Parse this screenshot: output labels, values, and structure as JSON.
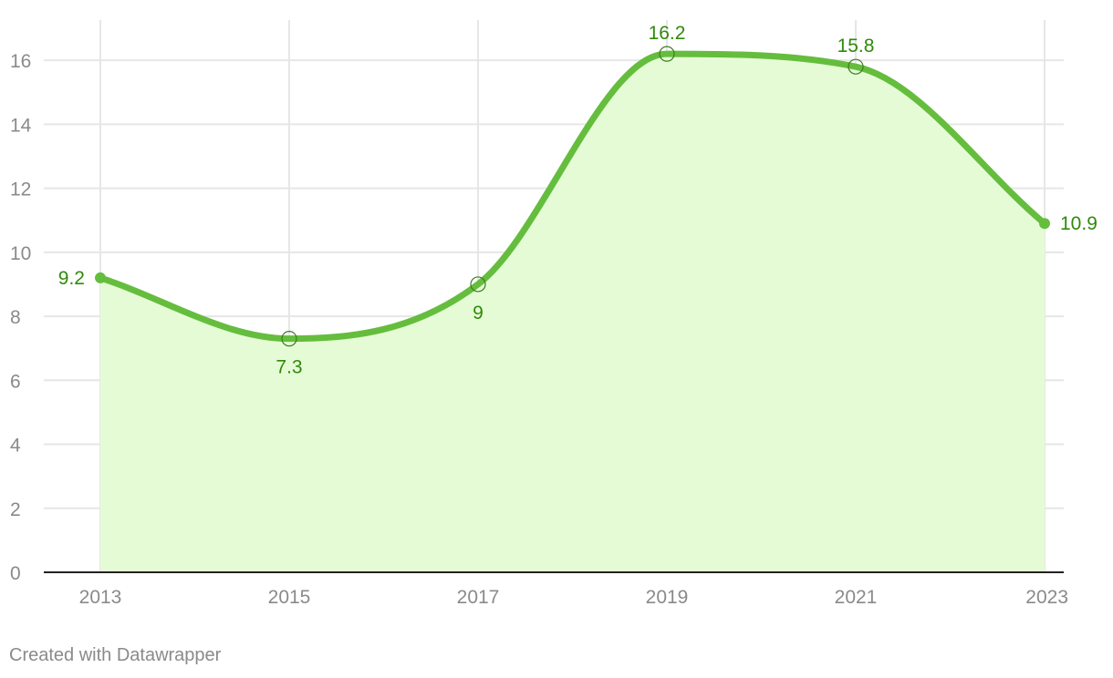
{
  "chart_data": {
    "type": "area",
    "x": [
      2013,
      2015,
      2017,
      2019,
      2021,
      2023
    ],
    "series": [
      {
        "values": [
          9.2,
          7.3,
          9,
          16.2,
          15.8,
          10.9
        ],
        "color": "#65bd3d"
      }
    ],
    "data_labels": [
      "9.2",
      "7.3",
      "9",
      "16.2",
      "15.8",
      "10.9"
    ],
    "ylim": [
      0,
      17.2
    ],
    "y_ticks": [
      0,
      2,
      4,
      6,
      8,
      10,
      12,
      14,
      16
    ],
    "y_tick_labels": [
      "0",
      "2",
      "4",
      "6",
      "8",
      "10",
      "12",
      "14",
      "16"
    ],
    "x_tick_labels": [
      "2013",
      "2015",
      "2017",
      "2019",
      "2021",
      "2023"
    ],
    "grid": true,
    "smooth": true,
    "area_fill_color": "#e5fbd6",
    "label_color": "#2f8a0a",
    "grid_color": "#e6e6e6",
    "axis_color": "#222222"
  },
  "footer": {
    "credit": "Created with Datawrapper"
  }
}
